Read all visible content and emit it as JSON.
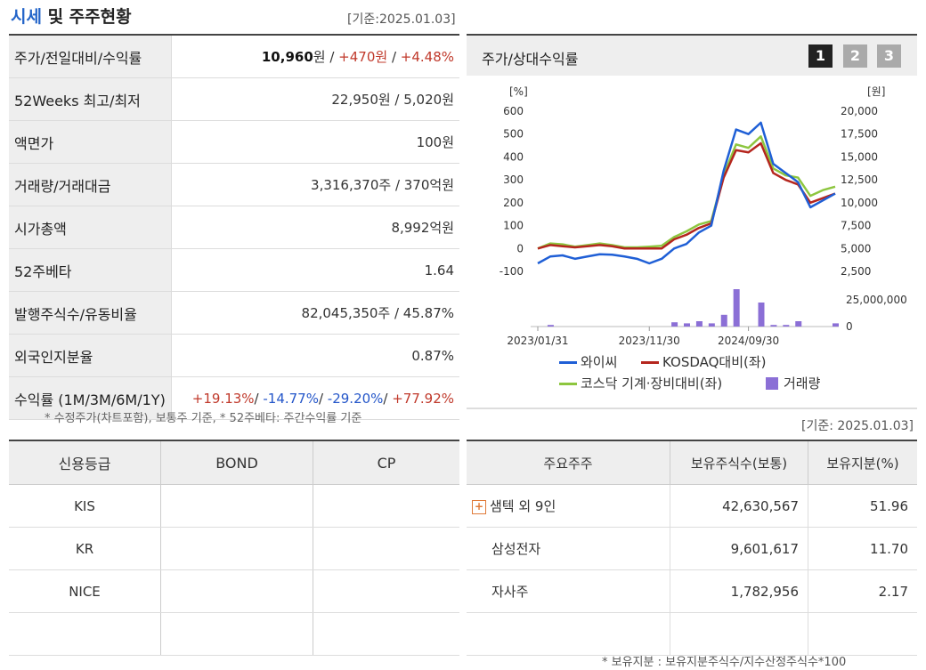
{
  "header": {
    "title_blue": "시세",
    "title_rest": " 및 주주현황",
    "basis": "[기준:2025.01.03]"
  },
  "price": {
    "rows": [
      {
        "label": "주가/전일대비/수익률"
      },
      {
        "label": "52Weeks 최고/최저",
        "value": "22,950원 / 5,020원"
      },
      {
        "label": "액면가",
        "value": "100원"
      },
      {
        "label": "거래량/거래대금",
        "value": "3,316,370주 / 370억원"
      },
      {
        "label": "시가총액",
        "value": "8,992억원"
      },
      {
        "label": "52주베타",
        "value": "1.64"
      },
      {
        "label": "발행주식수/유동비율",
        "value": "82,045,350주 / 45.87%"
      },
      {
        "label": "외국인지분율",
        "value": "0.87%"
      },
      {
        "label": "수익률 (1M/3M/6M/1Y)"
      }
    ],
    "current_price": "10,960",
    "won": "원",
    "sep": " / ",
    "change": "+470원",
    "change_pct": "+4.48%",
    "returns": {
      "m1": "+19.13%",
      "m3": "-14.77%",
      "m6": "-29.20%",
      "y1": "+77.92%",
      "sep": "/ "
    }
  },
  "notes": {
    "left": "* 수정주가(차트포함), 보통주 기준, * 52주베타: 주간수익률 기준",
    "right": "* 보유지분 : 보유지분주식수/지수산정주식수*100",
    "basis2": "[기준: 2025.01.03]"
  },
  "credit": {
    "headers": [
      "신용등급",
      "BOND",
      "CP"
    ],
    "rows": [
      [
        "KIS",
        "",
        ""
      ],
      [
        "KR",
        "",
        ""
      ],
      [
        "NICE",
        "",
        ""
      ],
      [
        "",
        "",
        ""
      ]
    ]
  },
  "chart_panel": {
    "title": "주가/상대수익률",
    "tabs": [
      "1",
      "2",
      "3"
    ],
    "tab_colors": [
      "#222222",
      "#aaaaaa",
      "#aaaaaa"
    ]
  },
  "chart_data": {
    "type": "line",
    "left_axis_unit": "[%]",
    "right_axis_unit": "[원]",
    "left_ticks": [
      "600",
      "500",
      "400",
      "300",
      "200",
      "100",
      "0",
      "-100"
    ],
    "right_ticks": [
      "20,000",
      "17,500",
      "15,000",
      "12,500",
      "10,000",
      "7,500",
      "5,000",
      "2,500"
    ],
    "volume_tick": "25,000,000",
    "volume_zero": "0",
    "x_ticks": [
      "2023/01/31",
      "2023/11/30",
      "2024/09/30"
    ],
    "ylim": [
      -100,
      600
    ],
    "series": [
      {
        "name": "와이씨",
        "color": "#1f5fd6",
        "values": [
          -65,
          -35,
          -30,
          -45,
          -35,
          -25,
          -27,
          -35,
          -45,
          -65,
          -45,
          0,
          20,
          70,
          100,
          340,
          520,
          500,
          550,
          370,
          330,
          290,
          180,
          210,
          240
        ]
      },
      {
        "name": "KOSDAQ대비(좌)",
        "color": "#b5261e",
        "values": [
          0,
          15,
          10,
          5,
          10,
          15,
          10,
          0,
          0,
          0,
          0,
          40,
          60,
          90,
          110,
          310,
          430,
          420,
          460,
          330,
          300,
          280,
          200,
          220,
          240
        ]
      },
      {
        "name": "코스닥 기계·장비대비(좌)",
        "color": "#8dc63f",
        "values": [
          0,
          22,
          18,
          8,
          15,
          22,
          15,
          5,
          5,
          8,
          12,
          50,
          75,
          105,
          120,
          320,
          455,
          440,
          490,
          350,
          320,
          310,
          230,
          255,
          270
        ]
      }
    ],
    "volume": {
      "name": "거래량",
      "color": "#8b6fd6",
      "values": [
        0,
        3,
        0,
        0,
        0,
        0,
        0,
        0,
        0,
        0,
        0,
        8,
        6,
        10,
        6,
        22,
        70,
        0,
        45,
        3,
        3,
        10,
        0,
        0,
        6
      ]
    }
  },
  "shareholders": {
    "headers": [
      "주요주주",
      "보유주식수(보통)",
      "보유지분(%)"
    ],
    "rows": [
      {
        "name": "샘텍 외 9인",
        "shares": "42,630,567",
        "pct": "51.96",
        "expand": "+"
      },
      {
        "name": "삼성전자",
        "shares": "9,601,617",
        "pct": "11.70"
      },
      {
        "name": "자사주",
        "shares": "1,782,956",
        "pct": "2.17"
      }
    ]
  }
}
